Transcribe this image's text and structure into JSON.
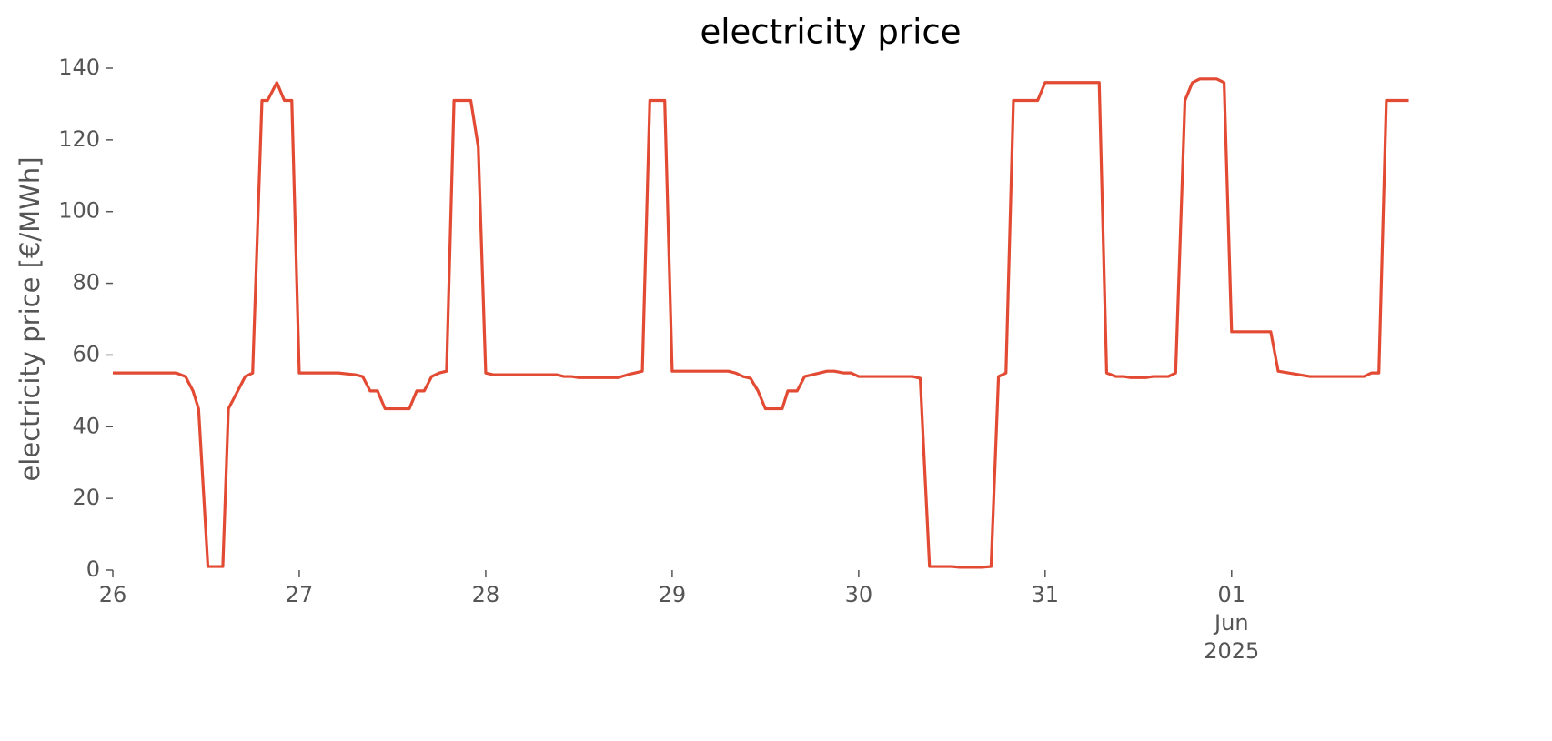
{
  "chart_data": {
    "type": "line",
    "title": "electricity price",
    "ylabel": "electricity price [€/MWh]",
    "x": [
      0,
      0.34,
      0.39,
      0.43,
      0.46,
      0.51,
      0.59,
      0.62,
      0.67,
      0.71,
      0.75,
      0.8,
      0.83,
      0.88,
      0.92,
      0.96,
      1.0,
      1.21,
      1.3,
      1.34,
      1.38,
      1.42,
      1.46,
      1.59,
      1.63,
      1.67,
      1.71,
      1.75,
      1.79,
      1.83,
      1.92,
      1.96,
      2.0,
      2.04,
      2.38,
      2.42,
      2.46,
      2.5,
      2.71,
      2.76,
      2.84,
      2.88,
      2.96,
      3.0,
      3.3,
      3.34,
      3.38,
      3.42,
      3.46,
      3.5,
      3.59,
      3.62,
      3.67,
      3.71,
      3.79,
      3.83,
      3.87,
      3.92,
      3.96,
      4.0,
      4.29,
      4.33,
      4.38,
      4.5,
      4.54,
      4.66,
      4.71,
      4.75,
      4.79,
      4.83,
      4.96,
      5.0,
      5.29,
      5.33,
      5.38,
      5.42,
      5.46,
      5.54,
      5.58,
      5.66,
      5.7,
      5.75,
      5.79,
      5.83,
      5.92,
      5.96,
      6.0,
      6.21,
      6.25,
      6.42,
      6.71,
      6.75,
      6.79,
      6.83,
      6.95
    ],
    "values": [
      55,
      55,
      54,
      50,
      45,
      1,
      1,
      45,
      50,
      54,
      55,
      131,
      131,
      136,
      131,
      131,
      55,
      55,
      54.5,
      54,
      50,
      50,
      45,
      45,
      50,
      50,
      54,
      55,
      55.5,
      131,
      131,
      118,
      55,
      54.5,
      54.5,
      54,
      54,
      53.7,
      53.7,
      54.5,
      55.5,
      131,
      131,
      55.5,
      55.5,
      55,
      54,
      53.5,
      50,
      45,
      45,
      50,
      50,
      54,
      55,
      55.5,
      55.5,
      55,
      55,
      54,
      54,
      53.5,
      1,
      1,
      0.8,
      0.8,
      1,
      54,
      55,
      131,
      131,
      136,
      136,
      55,
      54,
      54,
      53.7,
      53.7,
      54,
      54,
      55,
      131,
      136,
      137,
      137,
      136,
      66.5,
      66.5,
      55.5,
      54,
      54,
      55,
      55,
      131,
      131
    ],
    "color": "#e24a33",
    "xlim": [
      0,
      6.95
    ],
    "xticks": [
      {
        "value": 0,
        "label": "26"
      },
      {
        "value": 1,
        "label": "27"
      },
      {
        "value": 2,
        "label": "28"
      },
      {
        "value": 3,
        "label": "29"
      },
      {
        "value": 4,
        "label": "30"
      },
      {
        "value": 5,
        "label": "31"
      },
      {
        "value": 6,
        "label": "01\nJun\n2025"
      }
    ],
    "ylim": [
      0,
      140
    ],
    "yticks": [
      0,
      20,
      40,
      60,
      80,
      100,
      120,
      140
    ],
    "grid": false
  }
}
